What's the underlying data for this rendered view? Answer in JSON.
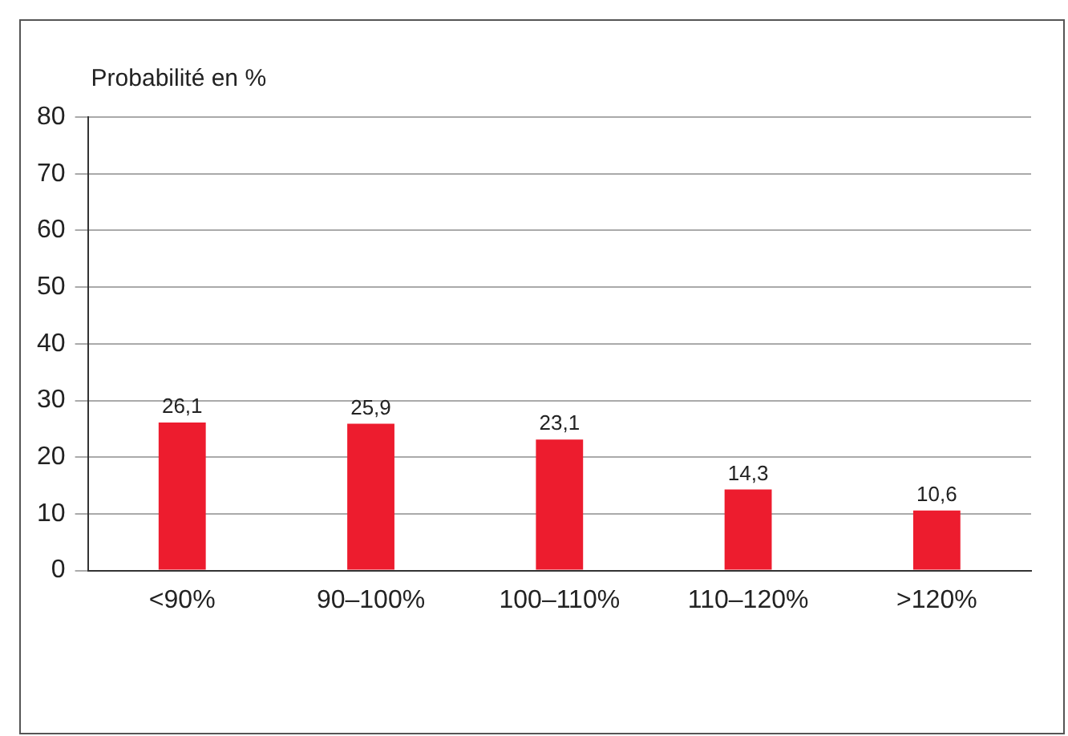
{
  "chart_data": {
    "type": "bar",
    "ylabel": "Probabilité en %",
    "categories": [
      "<90%",
      "90–100%",
      "100–110%",
      "110–120%",
      ">120%"
    ],
    "values": [
      26.1,
      25.9,
      23.1,
      14.3,
      10.6
    ],
    "value_labels": [
      "26,1",
      "25,9",
      "23,1",
      "14,3",
      "10,6"
    ],
    "color": "#ed1c2e",
    "ylim": [
      0,
      80
    ],
    "yticks": [
      0,
      10,
      20,
      30,
      40,
      50,
      60,
      70,
      80
    ],
    "grid": "y",
    "legend": false
  }
}
